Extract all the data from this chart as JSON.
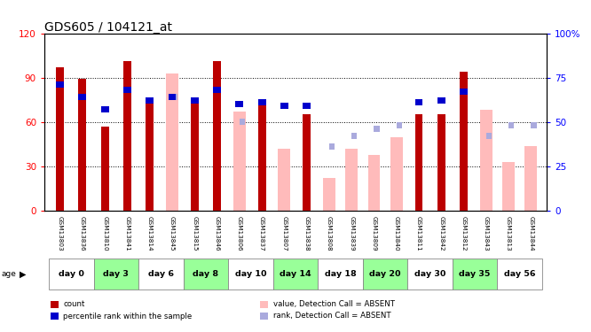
{
  "title": "GDS605 / 104121_at",
  "samples": [
    "GSM13803",
    "GSM13836",
    "GSM13810",
    "GSM13841",
    "GSM13814",
    "GSM13845",
    "GSM13815",
    "GSM13846",
    "GSM13806",
    "GSM13837",
    "GSM13807",
    "GSM13838",
    "GSM13808",
    "GSM13839",
    "GSM13809",
    "GSM13840",
    "GSM13811",
    "GSM13842",
    "GSM13812",
    "GSM13843",
    "GSM13813",
    "GSM13844"
  ],
  "age_groups": [
    {
      "label": "day 0",
      "indices": [
        0,
        1
      ]
    },
    {
      "label": "day 3",
      "indices": [
        2,
        3
      ]
    },
    {
      "label": "day 6",
      "indices": [
        4,
        5
      ]
    },
    {
      "label": "day 8",
      "indices": [
        6,
        7
      ]
    },
    {
      "label": "day 10",
      "indices": [
        8,
        9
      ]
    },
    {
      "label": "day 14",
      "indices": [
        10,
        11
      ]
    },
    {
      "label": "day 18",
      "indices": [
        12,
        13
      ]
    },
    {
      "label": "day 20",
      "indices": [
        14,
        15
      ]
    },
    {
      "label": "day 30",
      "indices": [
        16,
        17
      ]
    },
    {
      "label": "day 35",
      "indices": [
        18,
        19
      ]
    },
    {
      "label": "day 56",
      "indices": [
        20,
        21
      ]
    }
  ],
  "count_values": [
    97,
    89,
    57,
    101,
    76,
    null,
    76,
    101,
    null,
    72,
    null,
    65,
    null,
    null,
    null,
    null,
    65,
    65,
    94,
    null,
    null,
    null
  ],
  "rank_values": [
    73,
    66,
    59,
    70,
    64,
    66,
    64,
    70,
    62,
    63,
    61,
    61,
    null,
    null,
    null,
    null,
    63,
    64,
    69,
    null,
    null,
    null
  ],
  "absent_value": [
    null,
    null,
    null,
    null,
    null,
    93,
    null,
    null,
    67,
    null,
    42,
    null,
    22,
    42,
    38,
    50,
    null,
    null,
    null,
    68,
    33,
    44
  ],
  "absent_rank": [
    null,
    null,
    null,
    null,
    null,
    66,
    null,
    null,
    52,
    null,
    null,
    null,
    38,
    44,
    48,
    50,
    null,
    null,
    null,
    44,
    50,
    50
  ],
  "ylim_left": [
    0,
    120
  ],
  "ylim_right": [
    0,
    100
  ],
  "yticks_left": [
    0,
    30,
    60,
    90,
    120
  ],
  "yticks_right": [
    0,
    25,
    50,
    75,
    100
  ],
  "ytick_labels_left": [
    "0",
    "30",
    "60",
    "90",
    "120"
  ],
  "ytick_labels_right": [
    "0",
    "25",
    "50",
    "75",
    "100%"
  ],
  "count_color": "#bb0000",
  "rank_color": "#0000cc",
  "absent_value_color": "#ffbbbb",
  "absent_rank_color": "#aaaadd",
  "bg_color": "#ffffff",
  "sample_row_color": "#cccccc",
  "age_row_colors": [
    "#ffffff",
    "#99ff99"
  ],
  "legend_items": [
    {
      "label": "count",
      "color": "#bb0000"
    },
    {
      "label": "percentile rank within the sample",
      "color": "#0000cc"
    },
    {
      "label": "value, Detection Call = ABSENT",
      "color": "#ffbbbb"
    },
    {
      "label": "rank, Detection Call = ABSENT",
      "color": "#aaaadd"
    }
  ]
}
